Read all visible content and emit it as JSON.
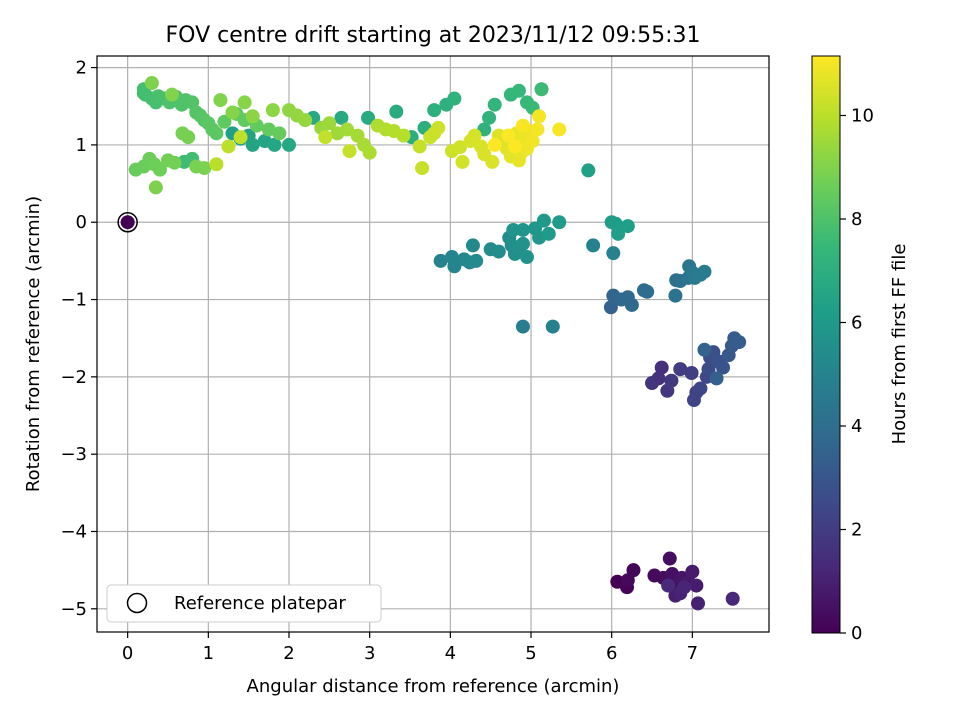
{
  "chart_data": {
    "type": "scatter",
    "title": "FOV centre drift starting at 2023/11/12 09:55:31",
    "xlabel": "Angular distance from reference (arcmin)",
    "ylabel": "Rotation from reference (arcmin)",
    "xlim": [
      -0.38,
      7.95
    ],
    "ylim": [
      -5.3,
      2.15
    ],
    "xticks": [
      0,
      1,
      2,
      3,
      4,
      5,
      6,
      7
    ],
    "yticks": [
      -5,
      -4,
      -3,
      -2,
      -1,
      0,
      1,
      2
    ],
    "grid": true,
    "colorbar": {
      "label": "Hours from first FF file",
      "range": [
        0,
        11.15
      ],
      "ticks": [
        0,
        2,
        4,
        6,
        8,
        10
      ],
      "colormap": "viridis"
    },
    "legend": {
      "placement": "lower-left",
      "entries": [
        "Reference platepar"
      ]
    },
    "reference_point": {
      "x": 0,
      "y": 0,
      "hours": 0
    },
    "series": [
      {
        "hours_range": [
          0.0,
          1.3
        ],
        "points": [
          [
            6.07,
            -4.65
          ],
          [
            6.19,
            -4.72
          ],
          [
            6.27,
            -4.5
          ],
          [
            6.2,
            -4.63
          ],
          [
            6.53,
            -4.57
          ],
          [
            6.64,
            -4.6
          ],
          [
            6.72,
            -4.35
          ],
          [
            6.75,
            -4.55
          ],
          [
            6.8,
            -4.68
          ],
          [
            6.87,
            -4.6
          ],
          [
            6.95,
            -4.65
          ],
          [
            7.0,
            -4.52
          ],
          [
            7.05,
            -4.7
          ],
          [
            6.79,
            -4.83
          ],
          [
            7.07,
            -4.93
          ],
          [
            6.85,
            -4.8
          ],
          [
            6.9,
            -4.72
          ],
          [
            7.5,
            -4.87
          ],
          [
            6.7,
            -4.7
          ]
        ]
      },
      {
        "hours_range": [
          1.5,
          3.5
        ],
        "points": [
          [
            6.62,
            -1.88
          ],
          [
            6.58,
            -2.02
          ],
          [
            6.5,
            -2.08
          ],
          [
            6.69,
            -2.18
          ],
          [
            6.74,
            -2.05
          ],
          [
            6.85,
            -1.9
          ],
          [
            6.99,
            -1.95
          ],
          [
            7.05,
            -2.2
          ],
          [
            7.02,
            -2.3
          ],
          [
            7.1,
            -2.15
          ],
          [
            7.18,
            -2.0
          ],
          [
            7.2,
            -1.9
          ],
          [
            7.22,
            -1.75
          ],
          [
            7.26,
            -1.68
          ],
          [
            7.32,
            -1.8
          ],
          [
            7.38,
            -1.88
          ],
          [
            7.45,
            -1.72
          ],
          [
            7.49,
            -1.6
          ],
          [
            7.52,
            -1.5
          ],
          [
            7.58,
            -1.55
          ],
          [
            7.3,
            -2.02
          ],
          [
            7.15,
            -1.65
          ]
        ]
      },
      {
        "hours_range": [
          3.5,
          5.0
        ],
        "points": [
          [
            5.99,
            -1.1
          ],
          [
            6.02,
            -0.95
          ],
          [
            6.12,
            -1.0
          ],
          [
            6.2,
            -0.97
          ],
          [
            6.25,
            -1.07
          ],
          [
            6.4,
            -0.88
          ],
          [
            6.44,
            -0.9
          ],
          [
            6.8,
            -0.75
          ],
          [
            6.85,
            -0.76
          ],
          [
            6.79,
            -0.95
          ],
          [
            6.95,
            -0.72
          ],
          [
            6.96,
            -0.57
          ],
          [
            7.0,
            -0.65
          ],
          [
            7.03,
            -0.72
          ],
          [
            7.1,
            -0.68
          ],
          [
            7.15,
            -0.64
          ],
          [
            4.9,
            -1.35
          ],
          [
            5.27,
            -1.35
          ],
          [
            5.77,
            -0.3
          ],
          [
            6.02,
            -0.4
          ]
        ]
      },
      {
        "hours_range": [
          5.0,
          6.3
        ],
        "points": [
          [
            3.88,
            -0.5
          ],
          [
            4.02,
            -0.45
          ],
          [
            4.05,
            -0.57
          ],
          [
            4.17,
            -0.48
          ],
          [
            4.24,
            -0.52
          ],
          [
            4.28,
            -0.3
          ],
          [
            4.32,
            -0.5
          ],
          [
            4.5,
            -0.35
          ],
          [
            4.6,
            -0.38
          ],
          [
            4.73,
            -0.2
          ],
          [
            4.76,
            -0.3
          ],
          [
            4.8,
            -0.41
          ],
          [
            4.85,
            -0.32
          ],
          [
            4.9,
            -0.28
          ],
          [
            4.95,
            -0.45
          ],
          [
            4.78,
            -0.1
          ],
          [
            4.9,
            -0.1
          ],
          [
            5.05,
            -0.08
          ],
          [
            5.1,
            -0.2
          ],
          [
            5.16,
            0.02
          ],
          [
            5.22,
            -0.15
          ],
          [
            5.35,
            0.0
          ],
          [
            6.0,
            0.0
          ],
          [
            6.05,
            -0.02
          ],
          [
            6.08,
            -0.15
          ],
          [
            6.2,
            -0.05
          ],
          [
            5.71,
            0.67
          ]
        ]
      },
      {
        "hours_range": [
          6.3,
          7.7
        ],
        "points": [
          [
            1.3,
            1.15
          ],
          [
            1.4,
            1.08
          ],
          [
            1.5,
            1.12
          ],
          [
            1.55,
            1.0
          ],
          [
            1.7,
            1.05
          ],
          [
            1.82,
            1.0
          ],
          [
            2.0,
            1.0
          ],
          [
            2.3,
            1.35
          ],
          [
            2.65,
            1.35
          ],
          [
            2.98,
            1.35
          ],
          [
            3.33,
            1.43
          ],
          [
            3.52,
            1.1
          ],
          [
            3.68,
            1.22
          ],
          [
            3.8,
            1.45
          ],
          [
            3.95,
            1.52
          ],
          [
            4.05,
            1.6
          ],
          [
            4.42,
            1.2
          ],
          [
            4.48,
            1.35
          ],
          [
            4.55,
            1.52
          ],
          [
            4.75,
            1.65
          ],
          [
            4.85,
            1.7
          ],
          [
            4.95,
            1.55
          ],
          [
            5.02,
            1.48
          ],
          [
            5.13,
            1.72
          ],
          [
            0.7,
            0.78
          ],
          [
            0.8,
            0.82
          ]
        ]
      },
      {
        "hours_range": [
          7.7,
          9.0
        ],
        "points": [
          [
            0.2,
            1.67
          ],
          [
            0.2,
            1.72
          ],
          [
            0.22,
            1.65
          ],
          [
            0.3,
            1.6
          ],
          [
            0.35,
            1.55
          ],
          [
            0.38,
            1.63
          ],
          [
            0.45,
            1.6
          ],
          [
            0.52,
            1.55
          ],
          [
            0.6,
            1.62
          ],
          [
            0.67,
            1.52
          ],
          [
            0.72,
            1.58
          ],
          [
            0.8,
            1.55
          ],
          [
            0.85,
            1.42
          ],
          [
            0.9,
            1.38
          ],
          [
            0.95,
            1.32
          ],
          [
            1.0,
            1.28
          ],
          [
            1.05,
            1.2
          ],
          [
            1.1,
            1.15
          ],
          [
            1.2,
            1.3
          ],
          [
            1.35,
            1.4
          ],
          [
            1.45,
            1.32
          ],
          [
            1.6,
            1.25
          ],
          [
            1.75,
            1.2
          ],
          [
            1.88,
            1.15
          ],
          [
            0.1,
            0.68
          ],
          [
            0.2,
            0.72
          ],
          [
            0.27,
            0.82
          ],
          [
            0.33,
            0.75
          ],
          [
            0.4,
            0.68
          ],
          [
            0.5,
            0.8
          ],
          [
            0.58,
            0.77
          ],
          [
            0.68,
            1.15
          ],
          [
            0.75,
            1.1
          ],
          [
            0.85,
            0.72
          ],
          [
            0.95,
            0.7
          ],
          [
            0.35,
            0.45
          ],
          [
            0.3,
            1.8
          ],
          [
            0.55,
            1.65
          ]
        ]
      },
      {
        "hours_range": [
          9.0,
          10.2
        ],
        "points": [
          [
            1.15,
            1.58
          ],
          [
            1.3,
            1.42
          ],
          [
            1.45,
            1.55
          ],
          [
            1.55,
            1.37
          ],
          [
            1.8,
            1.45
          ],
          [
            2.0,
            1.45
          ],
          [
            2.1,
            1.38
          ],
          [
            2.2,
            1.32
          ],
          [
            2.4,
            1.22
          ],
          [
            2.5,
            1.28
          ],
          [
            2.6,
            1.15
          ],
          [
            2.72,
            1.2
          ],
          [
            2.85,
            1.12
          ],
          [
            2.93,
            1.0
          ],
          [
            3.0,
            0.9
          ],
          [
            3.1,
            1.25
          ],
          [
            3.2,
            1.2
          ],
          [
            3.3,
            1.18
          ],
          [
            3.42,
            1.12
          ],
          [
            1.1,
            0.75
          ],
          [
            1.25,
            0.98
          ],
          [
            1.4,
            1.1
          ],
          [
            2.45,
            1.1
          ],
          [
            2.75,
            0.92
          ]
        ]
      },
      {
        "hours_range": [
          10.2,
          11.15
        ],
        "points": [
          [
            3.62,
            0.98
          ],
          [
            3.65,
            0.7
          ],
          [
            3.75,
            1.1
          ],
          [
            3.8,
            1.15
          ],
          [
            3.85,
            1.22
          ],
          [
            4.02,
            0.92
          ],
          [
            4.12,
            0.97
          ],
          [
            4.15,
            0.78
          ],
          [
            4.25,
            1.05
          ],
          [
            4.3,
            1.12
          ],
          [
            4.38,
            0.98
          ],
          [
            4.42,
            0.88
          ],
          [
            4.52,
            0.78
          ],
          [
            4.6,
            1.12
          ],
          [
            4.65,
            1.08
          ],
          [
            4.7,
            0.95
          ],
          [
            4.75,
            0.85
          ],
          [
            4.78,
            1.05
          ],
          [
            4.82,
            1.15
          ],
          [
            4.85,
            0.8
          ],
          [
            4.88,
            0.9
          ],
          [
            4.9,
            1.0
          ],
          [
            4.92,
            1.1
          ],
          [
            4.95,
            0.95
          ],
          [
            4.98,
            1.18
          ],
          [
            5.02,
            1.05
          ],
          [
            5.08,
            1.2
          ],
          [
            5.1,
            1.37
          ],
          [
            5.35,
            1.2
          ],
          [
            4.9,
            1.25
          ],
          [
            4.72,
            1.12
          ],
          [
            4.55,
            1.0
          ],
          [
            4.8,
            0.98
          ]
        ]
      }
    ]
  }
}
